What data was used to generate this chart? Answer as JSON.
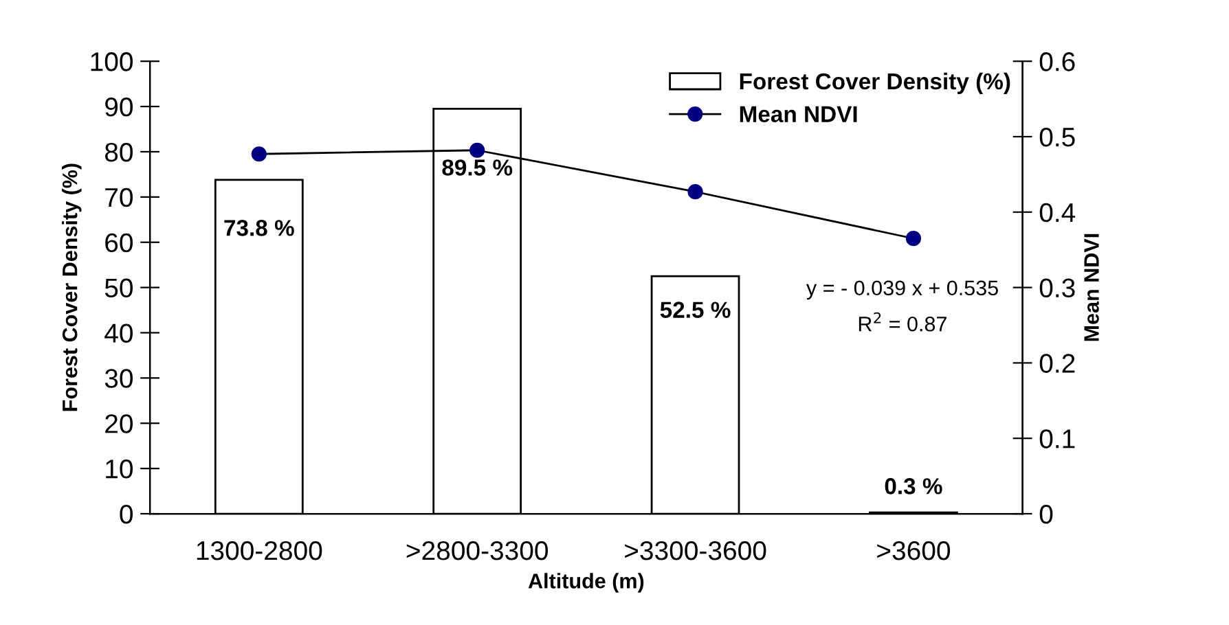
{
  "chart_data": {
    "type": "bar",
    "xlabel": "Altitude (m)",
    "ylabel": "Forest Cover Density (%)",
    "y2label": "Mean NDVI",
    "categories": [
      "1300-2800",
      ">2800-3300",
      ">3300-3600",
      ">3600"
    ],
    "series": [
      {
        "name": "Forest Cover Density (%)",
        "color": "#ffffff",
        "values": [
          73.8,
          89.5,
          52.5,
          0.3
        ],
        "value_labels": [
          "73.8 %",
          "89.5 %",
          "52.5 %",
          "0.3 %"
        ]
      },
      {
        "name": "Mean NDVI",
        "type": "line",
        "axis": "y2",
        "color": "#000080",
        "marker": "circle",
        "values": [
          0.477,
          0.482,
          0.427,
          0.365
        ]
      }
    ],
    "ylim": [
      0,
      100
    ],
    "yticks": [
      0,
      10,
      20,
      30,
      40,
      50,
      60,
      70,
      80,
      90,
      100
    ],
    "y2lim": [
      0,
      0.6
    ],
    "y2ticks": [
      0,
      0.1,
      0.2,
      0.3,
      0.4,
      0.5,
      0.6
    ],
    "annotations": [
      "y = - 0.039 x + 0.535",
      "R$^{2}$ = 0.87"
    ],
    "legend": "top right",
    "grid": false
  }
}
